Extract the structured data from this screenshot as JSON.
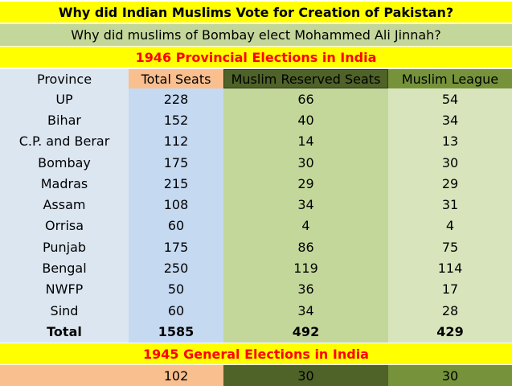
{
  "header": {
    "title": "Why did Indian Muslims Vote for  Creation of Pakistan?",
    "subtitle": "Why did muslims of Bombay elect Mohammed Ali Jinnah?",
    "section_1946": "1946 Provincial Elections in India",
    "section_1945": "1945 General Elections in India"
  },
  "columns": [
    "Province",
    "Total Seats",
    "Muslim Reserved Seats",
    "Muslim League"
  ],
  "rows": [
    {
      "province": "UP",
      "total": "228",
      "reserved": "66",
      "league": "54"
    },
    {
      "province": "Bihar",
      "total": "152",
      "reserved": "40",
      "league": "34"
    },
    {
      "province": "C.P. and Berar",
      "total": "112",
      "reserved": "14",
      "league": "13"
    },
    {
      "province": "Bombay",
      "total": "175",
      "reserved": "30",
      "league": "30"
    },
    {
      "province": "Madras",
      "total": "215",
      "reserved": "29",
      "league": "29"
    },
    {
      "province": "Assam",
      "total": "108",
      "reserved": "34",
      "league": "31"
    },
    {
      "province": "Orrisa",
      "total": "60",
      "reserved": "4",
      "league": "4"
    },
    {
      "province": "Punjab",
      "total": "175",
      "reserved": "86",
      "league": "75"
    },
    {
      "province": "Bengal",
      "total": "250",
      "reserved": "119",
      "league": "114"
    },
    {
      "province": "NWFP",
      "total": "50",
      "reserved": "36",
      "league": "17"
    },
    {
      "province": "Sind",
      "total": "60",
      "reserved": "34",
      "league": "28"
    }
  ],
  "total_row": {
    "province": "Total",
    "total": "1585",
    "reserved": "492",
    "league": "429"
  },
  "general_1945": {
    "province": "",
    "total": "102",
    "reserved": "30",
    "league": "30"
  }
}
